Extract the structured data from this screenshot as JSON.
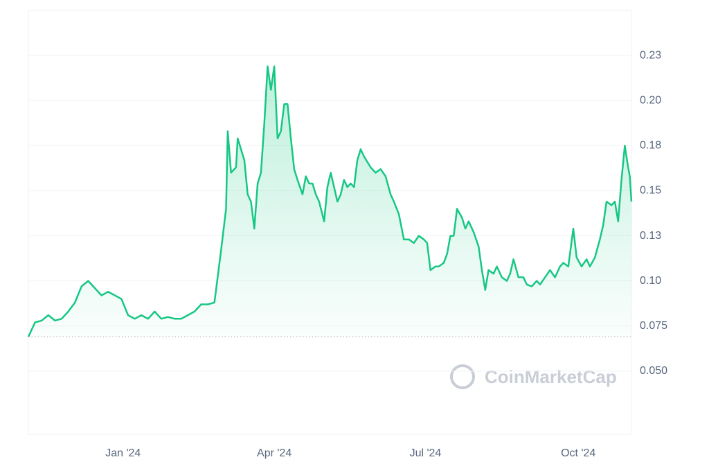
{
  "chart_data": {
    "type": "line",
    "watermark": "CoinMarketCap",
    "x": [
      0,
      4,
      8,
      12,
      16,
      20,
      24,
      28,
      32,
      36,
      40,
      44,
      48,
      52,
      56,
      60,
      64,
      68,
      72,
      76,
      80,
      84,
      88,
      92,
      96,
      100,
      104,
      108,
      112,
      116,
      119,
      120,
      122,
      125,
      126,
      128,
      130,
      132,
      134,
      136,
      138,
      140,
      142,
      144,
      146,
      148,
      150,
      152,
      154,
      156,
      158,
      160,
      162,
      165,
      167,
      169,
      171,
      173,
      175,
      178,
      180,
      182,
      184,
      186,
      188,
      190,
      192,
      194,
      196,
      198,
      200,
      202,
      206,
      209,
      212,
      215,
      218,
      220,
      223,
      226,
      229,
      232,
      235,
      238,
      240,
      242,
      245,
      247,
      250,
      252,
      254,
      256,
      258,
      261,
      263,
      265,
      268,
      271,
      273,
      275,
      277,
      280,
      282,
      285,
      288,
      290,
      292,
      295,
      298,
      300,
      303,
      306,
      308,
      311,
      314,
      317,
      320,
      322,
      325,
      328,
      330,
      333,
      336,
      338,
      341,
      344,
      346,
      348,
      351,
      353,
      355,
      357,
      359,
      361,
      362,
      363
    ],
    "series": [
      {
        "color": "#16c784",
        "values": [
          0.069,
          0.077,
          0.078,
          0.081,
          0.078,
          0.079,
          0.083,
          0.088,
          0.097,
          0.1,
          0.096,
          0.092,
          0.094,
          0.092,
          0.09,
          0.081,
          0.079,
          0.081,
          0.079,
          0.083,
          0.079,
          0.08,
          0.079,
          0.079,
          0.081,
          0.083,
          0.087,
          0.087,
          0.088,
          0.117,
          0.14,
          0.183,
          0.16,
          0.163,
          0.179,
          0.173,
          0.167,
          0.148,
          0.144,
          0.129,
          0.154,
          0.16,
          0.187,
          0.219,
          0.206,
          0.219,
          0.179,
          0.183,
          0.198,
          0.198,
          0.179,
          0.162,
          0.156,
          0.148,
          0.158,
          0.154,
          0.154,
          0.148,
          0.144,
          0.133,
          0.152,
          0.16,
          0.152,
          0.144,
          0.148,
          0.156,
          0.152,
          0.154,
          0.152,
          0.167,
          0.173,
          0.169,
          0.163,
          0.16,
          0.162,
          0.158,
          0.148,
          0.144,
          0.137,
          0.123,
          0.123,
          0.121,
          0.125,
          0.123,
          0.121,
          0.106,
          0.108,
          0.108,
          0.11,
          0.115,
          0.125,
          0.125,
          0.14,
          0.135,
          0.129,
          0.133,
          0.127,
          0.119,
          0.106,
          0.095,
          0.106,
          0.104,
          0.108,
          0.102,
          0.1,
          0.104,
          0.112,
          0.102,
          0.102,
          0.098,
          0.097,
          0.1,
          0.098,
          0.102,
          0.106,
          0.102,
          0.108,
          0.11,
          0.108,
          0.129,
          0.113,
          0.108,
          0.112,
          0.108,
          0.113,
          0.123,
          0.131,
          0.144,
          0.142,
          0.144,
          0.133,
          0.156,
          0.175,
          0.163,
          0.158,
          0.144
        ]
      }
    ],
    "reference_line": 0.069,
    "xlim": [
      0,
      363
    ],
    "xticks": [
      {
        "value": 57,
        "label": "Jan '24"
      },
      {
        "value": 148,
        "label": "Apr '24"
      },
      {
        "value": 239,
        "label": "Jul '24"
      },
      {
        "value": 331,
        "label": "Oct '24"
      }
    ],
    "ylim": [
      0.015,
      0.25
    ],
    "yticks": [
      {
        "value": 0.05,
        "label": "0.050"
      },
      0.075,
      {
        "value": 0.1,
        "label": "0.10"
      },
      {
        "value": 0.125,
        "label": "0.13"
      },
      {
        "value": 0.15,
        "label": "0.15"
      },
      {
        "value": 0.175,
        "label": "0.18"
      },
      {
        "value": 0.2,
        "label": "0.20"
      },
      {
        "value": 0.225,
        "label": "0.23"
      }
    ],
    "grid": true
  }
}
